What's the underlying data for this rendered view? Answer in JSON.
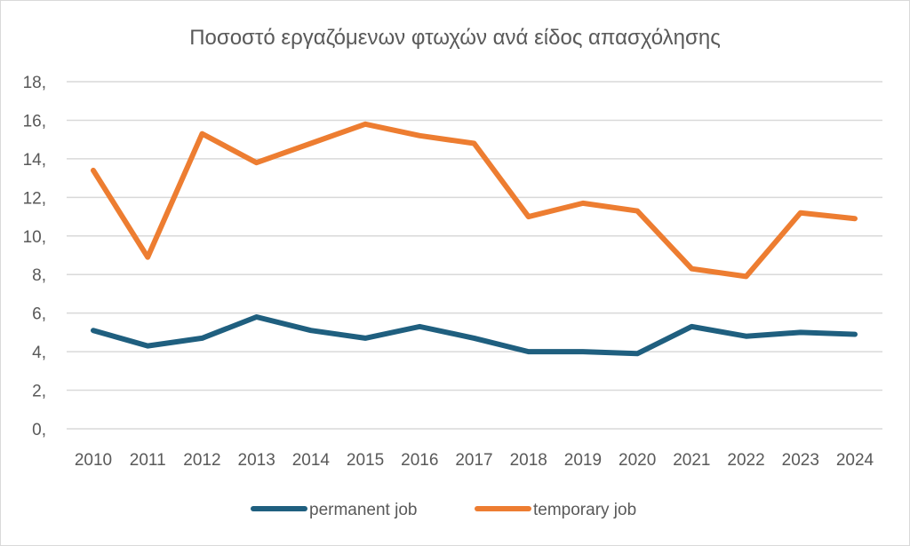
{
  "chart_data": {
    "type": "line",
    "title": "Ποσοστό εργαζόμενων φτωχών ανά είδος απασχόλησης",
    "xlabel": "",
    "ylabel": "",
    "x": [
      "2010",
      "2011",
      "2012",
      "2013",
      "2014",
      "2015",
      "2016",
      "2017",
      "2018",
      "2019",
      "2020",
      "2021",
      "2022",
      "2023",
      "2024"
    ],
    "ylim": [
      0,
      18
    ],
    "yticks": [
      0,
      2,
      4,
      6,
      8,
      10,
      12,
      14,
      16,
      18
    ],
    "ytick_labels": [
      "0,",
      "2,",
      "4,",
      "6,",
      "8,",
      "10,",
      "12,",
      "14,",
      "16,",
      "18,"
    ],
    "grid": true,
    "legend_position": "bottom",
    "series": [
      {
        "name": "permanent job",
        "color": "#1f5f7f",
        "values": [
          5.1,
          4.3,
          4.7,
          5.8,
          5.1,
          4.7,
          5.3,
          4.7,
          4.0,
          4.0,
          3.9,
          5.3,
          4.8,
          5.0,
          4.9
        ]
      },
      {
        "name": "temporary job",
        "color": "#ed7d31",
        "values": [
          13.4,
          8.9,
          15.3,
          13.8,
          14.8,
          15.8,
          15.2,
          14.8,
          11.0,
          11.7,
          11.3,
          8.3,
          7.9,
          11.2,
          10.9
        ]
      }
    ]
  }
}
